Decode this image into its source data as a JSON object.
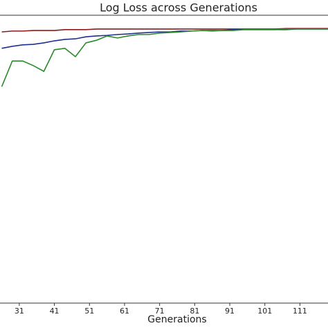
{
  "chart_data": {
    "type": "line",
    "title": "Log Loss across Generations",
    "x_label": "Generations",
    "x": [
      26,
      29,
      32,
      35,
      38,
      41,
      44,
      47,
      50,
      53,
      56,
      59,
      62,
      65,
      68,
      71,
      74,
      77,
      80,
      83,
      86,
      89,
      92,
      95,
      98,
      101,
      104,
      107,
      110,
      113,
      116,
      119
    ],
    "series": [
      {
        "color": "#8b1a1a",
        "values": [
          0.942,
          0.945,
          0.945,
          0.947,
          0.947,
          0.947,
          0.95,
          0.95,
          0.95,
          0.952,
          0.952,
          0.952,
          0.952,
          0.952,
          0.952,
          0.952,
          0.952,
          0.952,
          0.952,
          0.952,
          0.952,
          0.952,
          0.952,
          0.952,
          0.952,
          0.952,
          0.952,
          0.954,
          0.954,
          0.954,
          0.954,
          0.954
        ]
      },
      {
        "color": "#1f2f8a",
        "values": [
          0.885,
          0.892,
          0.897,
          0.899,
          0.904,
          0.911,
          0.916,
          0.918,
          0.925,
          0.928,
          0.93,
          0.933,
          0.935,
          0.938,
          0.94,
          0.942,
          0.942,
          0.945,
          0.945,
          0.947,
          0.947,
          0.947,
          0.95,
          0.95,
          0.95,
          0.95,
          0.95,
          0.95,
          0.952,
          0.952,
          0.952,
          0.952
        ]
      },
      {
        "color": "#2a8a2a",
        "values": [
          0.752,
          0.841,
          0.841,
          0.825,
          0.805,
          0.88,
          0.885,
          0.856,
          0.904,
          0.913,
          0.928,
          0.921,
          0.928,
          0.933,
          0.933,
          0.938,
          0.94,
          0.942,
          0.945,
          0.947,
          0.945,
          0.947,
          0.947,
          0.95,
          0.95,
          0.95,
          0.95,
          0.952,
          0.952,
          0.952,
          0.952,
          0.952
        ]
      }
    ],
    "xlim": [
      25.5,
      119
    ],
    "xticks": [
      31,
      41,
      51,
      61,
      71,
      81,
      91,
      101,
      111
    ],
    "ylim": [
      0,
      1
    ]
  }
}
